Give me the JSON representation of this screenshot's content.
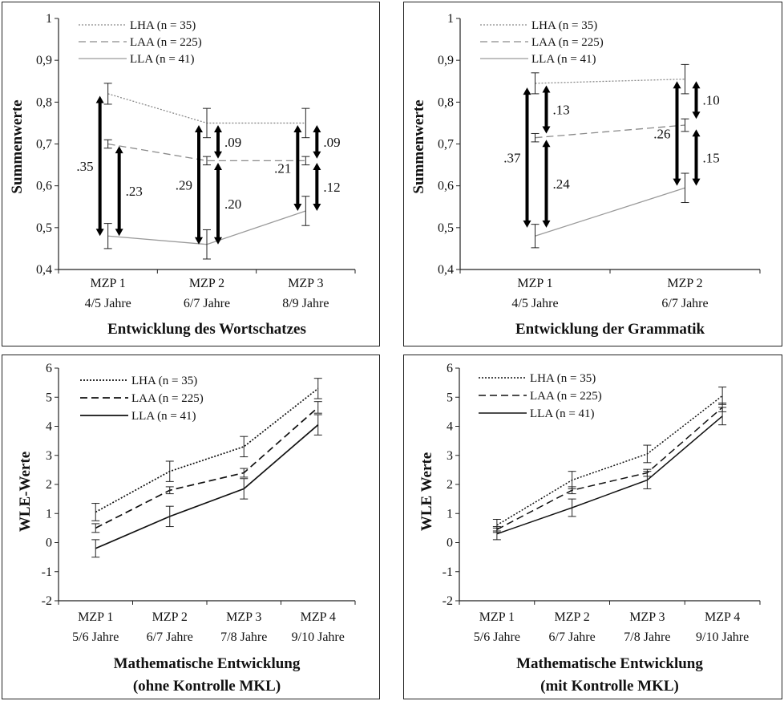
{
  "chart_data": [
    {
      "type": "line",
      "ylabel": "Summenwerte",
      "xlabel": "Entwicklung des Wortschatzes",
      "xlabel2": "",
      "ylim": [
        0.4,
        1.0
      ],
      "yticks": [
        0.4,
        0.5,
        0.6,
        0.7,
        0.8,
        0.9,
        1.0
      ],
      "ytick_labels": [
        "0,4",
        "0,5",
        "0,6",
        "0,7",
        "0,8",
        "0,9",
        "1"
      ],
      "categories": [
        {
          "l1": "MZP 1",
          "l2": "4/5 Jahre"
        },
        {
          "l1": "MZP 2",
          "l2": "6/7 Jahre"
        },
        {
          "l1": "MZP 3",
          "l2": "8/9 Jahre"
        }
      ],
      "legend_position": "top-left",
      "series": [
        {
          "name": "LHA (n = 35)",
          "style": "dotted",
          "color": "#8a8a8a",
          "values": [
            0.82,
            0.75,
            0.75
          ],
          "errors": [
            0.025,
            0.035,
            0.035
          ]
        },
        {
          "name": "LAA (n = 225)",
          "style": "dashed",
          "color": "#8a8a8a",
          "values": [
            0.7,
            0.66,
            0.66
          ],
          "errors": [
            0.01,
            0.01,
            0.01
          ]
        },
        {
          "name": "LLA (n = 41)",
          "style": "solid",
          "color": "#9a9a9a",
          "values": [
            0.48,
            0.46,
            0.54
          ],
          "errors": [
            0.03,
            0.035,
            0.035
          ]
        }
      ],
      "annotations": [
        {
          "cat": 0,
          "side": "left",
          "from": 0.815,
          "to": 0.48,
          "label": ".35"
        },
        {
          "cat": 0,
          "side": "right",
          "from": 0.695,
          "to": 0.48,
          "label": ".23"
        },
        {
          "cat": 1,
          "side": "left",
          "from": 0.745,
          "to": 0.46,
          "label": ".29"
        },
        {
          "cat": 1,
          "side": "right",
          "from": 0.745,
          "to": 0.665,
          "label": ".09"
        },
        {
          "cat": 1,
          "side": "right",
          "from": 0.655,
          "to": 0.46,
          "label": ".20"
        },
        {
          "cat": 2,
          "side": "left",
          "from": 0.745,
          "to": 0.54,
          "label": ".21"
        },
        {
          "cat": 2,
          "side": "right",
          "from": 0.745,
          "to": 0.665,
          "label": ".09"
        },
        {
          "cat": 2,
          "side": "right",
          "from": 0.655,
          "to": 0.54,
          "label": ".12"
        }
      ]
    },
    {
      "type": "line",
      "ylabel": "Summenwerte",
      "xlabel": "Entwicklung der Grammatik",
      "xlabel2": "",
      "ylim": [
        0.4,
        1.0
      ],
      "yticks": [
        0.4,
        0.5,
        0.6,
        0.7,
        0.8,
        0.9,
        1.0
      ],
      "ytick_labels": [
        "0,4",
        "0,5",
        "0,6",
        "0,7",
        "0,8",
        "0,9",
        "1"
      ],
      "categories": [
        {
          "l1": "MZP 1",
          "l2": "4/5 Jahre"
        },
        {
          "l1": "MZP 2",
          "l2": "6/7 Jahre"
        }
      ],
      "legend_position": "top-left",
      "series": [
        {
          "name": "LHA (n = 35)",
          "style": "dotted",
          "color": "#8a8a8a",
          "values": [
            0.845,
            0.855
          ],
          "errors": [
            0.025,
            0.035
          ]
        },
        {
          "name": "LAA (n = 225)",
          "style": "dashed",
          "color": "#8a8a8a",
          "values": [
            0.715,
            0.745
          ],
          "errors": [
            0.01,
            0.015
          ]
        },
        {
          "name": "LLA (n = 41)",
          "style": "solid",
          "color": "#9a9a9a",
          "values": [
            0.48,
            0.595
          ],
          "errors": [
            0.028,
            0.035
          ]
        }
      ],
      "annotations": [
        {
          "cat": 0,
          "side": "left",
          "from": 0.835,
          "to": 0.5,
          "label": ".37"
        },
        {
          "cat": 0,
          "side": "right",
          "from": 0.84,
          "to": 0.725,
          "label": ".13"
        },
        {
          "cat": 0,
          "side": "right",
          "from": 0.71,
          "to": 0.5,
          "label": ".24"
        },
        {
          "cat": 1,
          "side": "left",
          "from": 0.85,
          "to": 0.6,
          "label": ".26"
        },
        {
          "cat": 1,
          "side": "right",
          "from": 0.85,
          "to": 0.76,
          "label": ".10"
        },
        {
          "cat": 1,
          "side": "right",
          "from": 0.735,
          "to": 0.6,
          "label": ".15"
        }
      ]
    },
    {
      "type": "line",
      "ylabel": "WLE-Werte",
      "xlabel": "Mathematische Entwicklung",
      "xlabel2": "(ohne Kontrolle MKL)",
      "ylim": [
        -2,
        6
      ],
      "yticks": [
        -2,
        -1,
        0,
        1,
        2,
        3,
        4,
        5,
        6
      ],
      "ytick_labels": [
        "-2",
        "-1",
        "0",
        "1",
        "2",
        "3",
        "4",
        "5",
        "6"
      ],
      "categories": [
        {
          "l1": "MZP 1",
          "l2": "5/6 Jahre"
        },
        {
          "l1": "MZP 2",
          "l2": "6/7 Jahre"
        },
        {
          "l1": "MZP 3",
          "l2": "7/8 Jahre"
        },
        {
          "l1": "MZP 4",
          "l2": "9/10 Jahre"
        }
      ],
      "legend_position": "top-left",
      "series": [
        {
          "name": "LHA (n = 35)",
          "style": "dotted",
          "color": "#111111",
          "values": [
            1.05,
            2.45,
            3.3,
            5.3
          ],
          "errors": [
            0.3,
            0.35,
            0.35,
            0.35
          ]
        },
        {
          "name": "LAA (n = 225)",
          "style": "dashed",
          "color": "#111111",
          "values": [
            0.5,
            1.8,
            2.4,
            4.65
          ],
          "errors": [
            0.15,
            0.12,
            0.15,
            0.2
          ]
        },
        {
          "name": "LLA (n = 41)",
          "style": "solid",
          "color": "#111111",
          "values": [
            -0.2,
            0.9,
            1.85,
            4.05
          ],
          "errors": [
            0.3,
            0.35,
            0.35,
            0.35
          ]
        }
      ],
      "annotations": []
    },
    {
      "type": "line",
      "ylabel": "WLE Werte",
      "xlabel": "Mathematische Entwicklung",
      "xlabel2": "(mit Kontrolle MKL)",
      "ylim": [
        -2,
        6
      ],
      "yticks": [
        -2,
        -1,
        0,
        1,
        2,
        3,
        4,
        5,
        6
      ],
      "ytick_labels": [
        "-2",
        "-1",
        "0",
        "1",
        "2",
        "3",
        "4",
        "5",
        "6"
      ],
      "categories": [
        {
          "l1": "MZP 1",
          "l2": "5/6 Jahre"
        },
        {
          "l1": "MZP 2",
          "l2": "6/7 Jahre"
        },
        {
          "l1": "MZP 3",
          "l2": "7/8 Jahre"
        },
        {
          "l1": "MZP 4",
          "l2": "9/10 Jahre"
        }
      ],
      "legend_position": "top-left",
      "series": [
        {
          "name": "LHA (n = 35)",
          "style": "dotted",
          "color": "#111111",
          "values": [
            0.6,
            2.15,
            3.05,
            5.05
          ],
          "errors": [
            0.2,
            0.3,
            0.3,
            0.3
          ]
        },
        {
          "name": "LAA (n = 225)",
          "style": "dashed",
          "color": "#111111",
          "values": [
            0.45,
            1.8,
            2.4,
            4.65
          ],
          "errors": [
            0.1,
            0.12,
            0.12,
            0.15
          ]
        },
        {
          "name": "LLA (n = 41)",
          "style": "solid",
          "color": "#111111",
          "values": [
            0.3,
            1.2,
            2.15,
            4.35
          ],
          "errors": [
            0.2,
            0.3,
            0.3,
            0.3
          ]
        }
      ],
      "annotations": []
    }
  ]
}
